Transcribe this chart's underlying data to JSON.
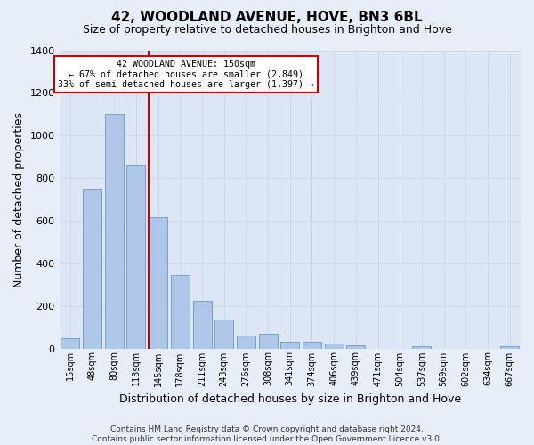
{
  "title": "42, WOODLAND AVENUE, HOVE, BN3 6BL",
  "subtitle": "Size of property relative to detached houses in Brighton and Hove",
  "xlabel_bottom": "Distribution of detached houses by size in Brighton and Hove",
  "ylabel": "Number of detached properties",
  "footer_line1": "Contains HM Land Registry data © Crown copyright and database right 2024.",
  "footer_line2": "Contains public sector information licensed under the Open Government Licence v3.0.",
  "annotation_line1": "42 WOODLAND AVENUE: 150sqm",
  "annotation_line2": "← 67% of detached houses are smaller (2,849)",
  "annotation_line3": "33% of semi-detached houses are larger (1,397) →",
  "bar_labels": [
    "15sqm",
    "48sqm",
    "80sqm",
    "113sqm",
    "145sqm",
    "178sqm",
    "211sqm",
    "243sqm",
    "276sqm",
    "308sqm",
    "341sqm",
    "374sqm",
    "406sqm",
    "439sqm",
    "471sqm",
    "504sqm",
    "537sqm",
    "569sqm",
    "602sqm",
    "634sqm",
    "667sqm"
  ],
  "bar_values": [
    50,
    750,
    1100,
    865,
    615,
    345,
    225,
    135,
    62,
    70,
    30,
    30,
    22,
    14,
    0,
    0,
    12,
    0,
    0,
    0,
    12
  ],
  "bar_color": "#aec6e8",
  "bar_edge_color": "#5b8db8",
  "vline_color": "#cc0000",
  "vline_x_index": 4,
  "ylim": [
    0,
    1400
  ],
  "yticks": [
    0,
    200,
    400,
    600,
    800,
    1000,
    1200,
    1400
  ],
  "grid_color": "#d0d8e8",
  "bg_color": "#e8eef8",
  "plot_bg_color": "#dce6f5",
  "annotation_box_facecolor": "#ffffff",
  "annotation_box_edge": "#cc0000",
  "title_fontsize": 11,
  "subtitle_fontsize": 9,
  "ylabel_fontsize": 9,
  "xlabel_fontsize": 9,
  "tick_fontsize": 8,
  "footer_fontsize": 6.5
}
